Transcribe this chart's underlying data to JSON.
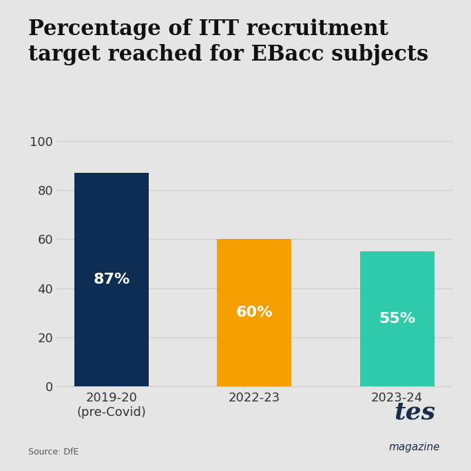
{
  "title": "Percentage of ITT recruitment\ntarget reached for EBacc subjects",
  "categories": [
    "2019-20\n(pre-Covid)",
    "2022-23",
    "2023-24"
  ],
  "values": [
    87,
    60,
    55
  ],
  "bar_colors": [
    "#0d2d52",
    "#f5a000",
    "#2ecaaa"
  ],
  "label_texts": [
    "87%",
    "60%",
    "55%"
  ],
  "ylim": [
    0,
    100
  ],
  "yticks": [
    0,
    20,
    40,
    60,
    80,
    100
  ],
  "background_color": "#e5e5e5",
  "title_fontsize": 22,
  "label_fontsize": 16,
  "tick_fontsize": 13,
  "source_text": "Source: DfE",
  "source_fontsize": 9,
  "label_color": "#ffffff",
  "grid_color": "#cccccc",
  "tes_color": "#1a2e4a"
}
